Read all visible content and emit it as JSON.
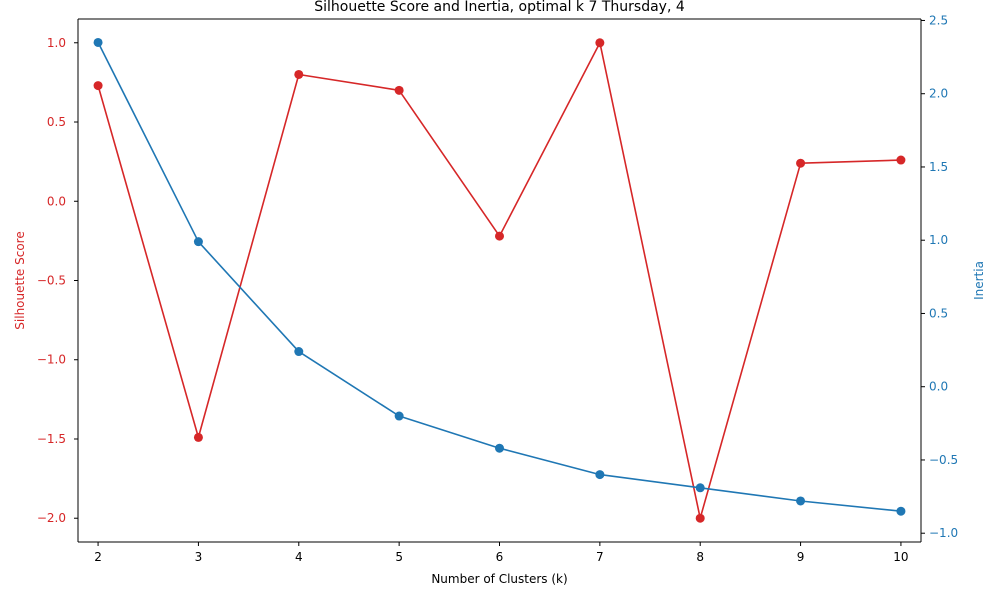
{
  "chart_data": {
    "type": "line",
    "title": "Silhouette Score and Inertia, optimal k 7 Thursday, 4",
    "xlabel": "Number of Clusters (k)",
    "x": [
      2,
      3,
      4,
      5,
      6,
      7,
      8,
      9,
      10
    ],
    "xlim": [
      1.8,
      10.2
    ],
    "grid": false,
    "legend": "none",
    "axes": {
      "left": {
        "label": "Silhouette Score",
        "color": "#d62728",
        "ylim": [
          -2.15,
          1.15
        ],
        "ticks": [
          1.0,
          0.5,
          0.0,
          -0.5,
          -1.0,
          -1.5,
          -2.0
        ],
        "tick_labels": [
          "1.0",
          "0.5",
          "0.0",
          "−0.5",
          "−1.0",
          "−1.5",
          "−2.0"
        ]
      },
      "right": {
        "label": "Inertia",
        "color": "#1f77b4",
        "ylim": [
          -1.06,
          2.51
        ],
        "ticks": [
          2.5,
          2.0,
          1.5,
          1.0,
          0.5,
          0.0,
          -0.5,
          -1.0
        ],
        "tick_labels": [
          "2.5",
          "2.0",
          "1.5",
          "1.0",
          "0.5",
          "0.0",
          "−0.5",
          "−1.0"
        ]
      }
    },
    "series": [
      {
        "axis": "left",
        "color": "#d62728",
        "marker": "circle",
        "values": [
          0.73,
          -1.49,
          0.8,
          0.7,
          -0.22,
          1.0,
          -2.0,
          0.24,
          0.26
        ]
      },
      {
        "axis": "right",
        "color": "#1f77b4",
        "marker": "circle",
        "values": [
          2.35,
          0.99,
          0.24,
          -0.2,
          -0.42,
          -0.6,
          -0.69,
          -0.78,
          -0.85
        ]
      }
    ]
  }
}
